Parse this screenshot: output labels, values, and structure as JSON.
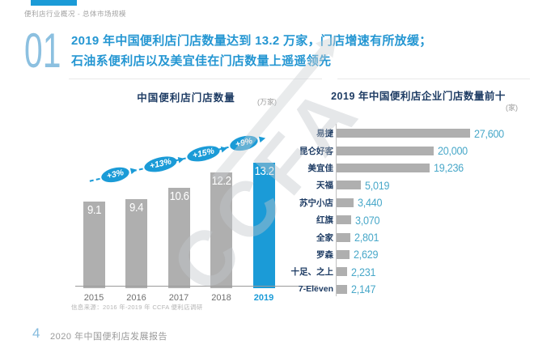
{
  "page": {
    "breadcrumb": "便利店行业概况 - 总体市场规模",
    "section_number": "01",
    "title_line1": "2019 年中国便利店门店数量达到 13.2 万家，门店增速有所放缓；",
    "title_line2": "石油系便利店以及美宜佳在门店数量上遥遥领先",
    "source_note": "信息来源：2016 年-2019 年 CCFA 便利店调研",
    "watermark": "CCFA",
    "footer_page": "4",
    "footer_text": "2020 年中国便利店发展报告"
  },
  "colors": {
    "accent_blue": "#1b9bd7",
    "title_blue": "#2496d2",
    "navy": "#1e3c64",
    "bar_gray": "#afafaf",
    "value_teal": "#49a8c9",
    "light_blue": "#8cc0e0",
    "text_gray": "#9b9b9b"
  },
  "chart_data": [
    {
      "type": "bar",
      "orientation": "vertical",
      "title": "中国便利店门店数量",
      "unit": "(万家)",
      "categories": [
        "2015",
        "2016",
        "2017",
        "2018",
        "2019"
      ],
      "values": [
        9.1,
        9.4,
        10.6,
        12.2,
        13.2
      ],
      "value_labels": [
        "9.1",
        "9.4",
        "10.6",
        "12.2",
        "13.2"
      ],
      "growth_labels": [
        "+3%",
        "+13%",
        "+15%",
        "+9%"
      ],
      "highlight_index": 4,
      "ylim": [
        0,
        14
      ],
      "grid": false,
      "legend": false
    },
    {
      "type": "bar",
      "orientation": "horizontal",
      "title": "2019 年中国便利店企业门店数量前十",
      "unit": "(家)",
      "categories": [
        "易捷",
        "昆仑好客",
        "美宜佳",
        "天福",
        "苏宁小店",
        "红旗",
        "全家",
        "罗森",
        "十足、之上",
        "7-Eleven"
      ],
      "values": [
        27600,
        20000,
        19236,
        5019,
        3440,
        3070,
        2801,
        2629,
        2231,
        2147
      ],
      "value_labels": [
        "27,600",
        "20,000",
        "19,236",
        "5,019",
        "3,440",
        "3,070",
        "2,801",
        "2,629",
        "2,231",
        "2,147"
      ],
      "xlim": [
        0,
        30000
      ],
      "grid": false,
      "legend": false
    }
  ]
}
